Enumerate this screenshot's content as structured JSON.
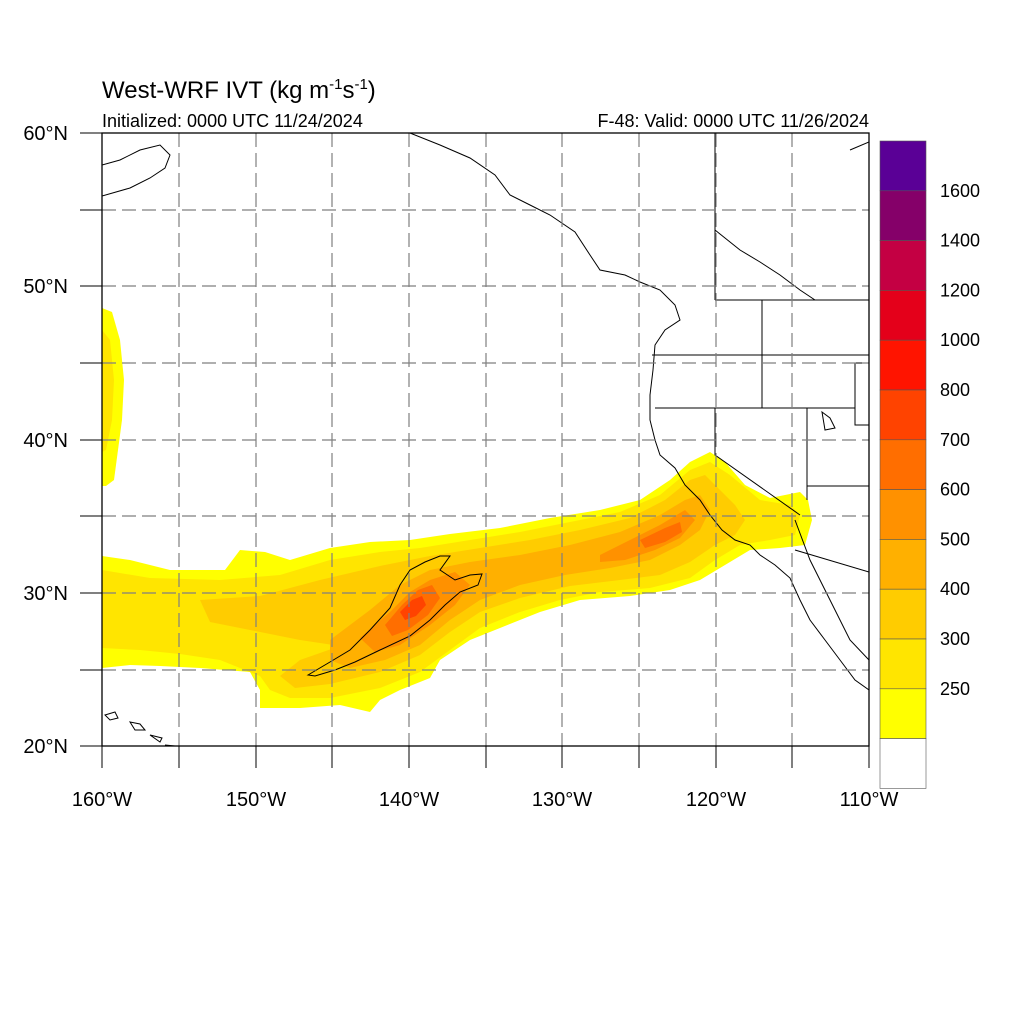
{
  "header": {
    "title_main": "West-WRF IVT (kg m",
    "title_exp1": "-1",
    "title_mid": "s",
    "title_exp2": "-1",
    "title_end": ")",
    "initialized": "Initialized: 0000 UTC 11/24/2024",
    "valid": "F-48: Valid: 0000 UTC 11/26/2024"
  },
  "map": {
    "lon_labels": [
      "160°W",
      "150°W",
      "140°W",
      "130°W",
      "120°W",
      "110°W"
    ],
    "lat_labels": [
      "60°N",
      "50°N",
      "40°N",
      "30°N",
      "20°N"
    ],
    "lon_range": [
      -160,
      -110
    ],
    "lat_range": [
      20,
      60
    ],
    "gridlines": "dashed grey every 5°",
    "colors": {
      "coast": "#000000",
      "grid": "#7f7f7f"
    }
  },
  "colorbar": {
    "levels": [
      {
        "label": "250",
        "color": "#ffff00"
      },
      {
        "label": "300",
        "color": "#ffe500"
      },
      {
        "label": "400",
        "color": "#ffcc00"
      },
      {
        "label": "500",
        "color": "#ffb000"
      },
      {
        "label": "600",
        "color": "#ff9100"
      },
      {
        "label": "700",
        "color": "#ff6e00"
      },
      {
        "label": "800",
        "color": "#ff4300"
      },
      {
        "label": "1000",
        "color": "#ff1400"
      },
      {
        "label": "1200",
        "color": "#e4001a"
      },
      {
        "label": "1400",
        "color": "#c40043"
      },
      {
        "label": "1600",
        "color": "#850069"
      }
    ],
    "below_min_color": "#ffffff",
    "top_color": "#5a0096"
  }
}
